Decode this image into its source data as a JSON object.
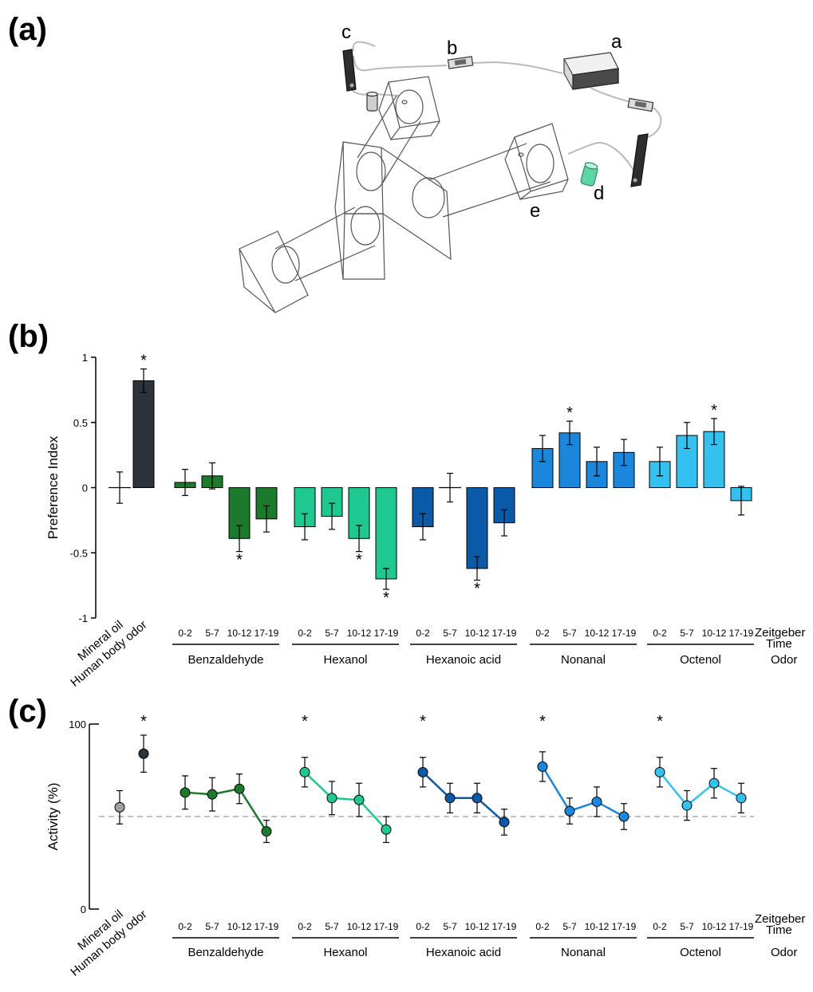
{
  "panels": {
    "a": "(a)",
    "b": "(b)",
    "c": "(c)"
  },
  "diagram": {
    "labels": {
      "a": "a",
      "b": "b",
      "c": "c",
      "d": "d",
      "e": "e"
    }
  },
  "axes_text": {
    "zeitgeber_line1": "Zeitgeber",
    "zeitgeber_line2": "Time",
    "odor": "Odor"
  },
  "colors": {
    "mineral_oil": "#9e9e9e",
    "human": "#2b333b",
    "benzaldehyde": "#1b7a2c",
    "hexanol": "#1fc890",
    "hexanoic_acid": "#0b5aa8",
    "nonanal": "#1a86dc",
    "octenol": "#35c1f0"
  },
  "chart_data": [
    {
      "type": "bar",
      "ylabel": "Preference Index",
      "ylim": [
        -1,
        1
      ],
      "yticks": [
        "1",
        "0.5",
        "0",
        "-0.5",
        "-1"
      ],
      "controls": [
        {
          "name": "Mineral oil",
          "value": 0.0,
          "error": 0.12,
          "marker": "cross",
          "sig": ""
        },
        {
          "name": "Human body odor",
          "value": 0.82,
          "error": 0.09,
          "marker": "bar",
          "sig": "*"
        }
      ],
      "time_categories": [
        "0-2",
        "5-7",
        "10-12",
        "17-19"
      ],
      "groups": [
        {
          "name": "Benzaldehyde",
          "color_key": "benzaldehyde",
          "values": [
            0.04,
            0.09,
            -0.39,
            -0.24
          ],
          "errors": [
            0.1,
            0.1,
            0.1,
            0.1
          ],
          "markers": [
            "bar",
            "bar",
            "bar",
            "bar"
          ],
          "sig": [
            "",
            "",
            "*",
            ""
          ]
        },
        {
          "name": "Hexanol",
          "color_key": "hexanol",
          "values": [
            -0.3,
            -0.22,
            -0.39,
            -0.7
          ],
          "errors": [
            0.1,
            0.1,
            0.1,
            0.08
          ],
          "markers": [
            "bar",
            "bar",
            "bar",
            "bar"
          ],
          "sig": [
            "",
            "",
            "*",
            "*"
          ]
        },
        {
          "name": "Hexanoic acid",
          "color_key": "hexanoic_acid",
          "values": [
            -0.3,
            0.0,
            -0.62,
            -0.27
          ],
          "errors": [
            0.1,
            0.11,
            0.09,
            0.1
          ],
          "markers": [
            "bar",
            "cross",
            "bar",
            "bar"
          ],
          "sig": [
            "",
            "",
            "*",
            ""
          ]
        },
        {
          "name": "Nonanal",
          "color_key": "nonanal",
          "values": [
            0.3,
            0.42,
            0.2,
            0.27
          ],
          "errors": [
            0.1,
            0.09,
            0.11,
            0.1
          ],
          "markers": [
            "bar",
            "bar",
            "bar",
            "bar"
          ],
          "sig": [
            "",
            "*",
            "",
            ""
          ]
        },
        {
          "name": "Octenol",
          "color_key": "octenol",
          "values": [
            0.2,
            0.4,
            0.43,
            -0.1
          ],
          "errors": [
            0.11,
            0.1,
            0.1,
            0.11
          ],
          "markers": [
            "bar",
            "bar",
            "bar",
            "bar"
          ],
          "sig": [
            "",
            "",
            "*",
            ""
          ]
        }
      ]
    },
    {
      "type": "line",
      "ylabel": "Activity (%)",
      "ylim": [
        0,
        100
      ],
      "yticks": [
        "100",
        "0"
      ],
      "reference_line": 50,
      "controls": [
        {
          "name": "Mineral oil",
          "value": 55,
          "error": 9,
          "sig": ""
        },
        {
          "name": "Human body odor",
          "value": 84,
          "error": 10,
          "sig": "*"
        }
      ],
      "time_categories": [
        "0-2",
        "5-7",
        "10-12",
        "17-19"
      ],
      "groups": [
        {
          "name": "Benzaldehyde",
          "color_key": "benzaldehyde",
          "values": [
            63,
            62,
            65,
            42
          ],
          "errors": [
            9,
            9,
            8,
            6
          ],
          "sig": [
            "",
            "",
            "",
            ""
          ]
        },
        {
          "name": "Hexanol",
          "color_key": "hexanol",
          "values": [
            74,
            60,
            59,
            43
          ],
          "errors": [
            8,
            9,
            9,
            7
          ],
          "sig": [
            "*",
            "",
            "",
            ""
          ]
        },
        {
          "name": "Hexanoic acid",
          "color_key": "hexanoic_acid",
          "values": [
            74,
            60,
            60,
            47
          ],
          "errors": [
            8,
            8,
            8,
            7
          ],
          "sig": [
            "*",
            "",
            "",
            ""
          ]
        },
        {
          "name": "Nonanal",
          "color_key": "nonanal",
          "values": [
            77,
            53,
            58,
            50
          ],
          "errors": [
            8,
            7,
            8,
            7
          ],
          "sig": [
            "*",
            "",
            "",
            ""
          ]
        },
        {
          "name": "Octenol",
          "color_key": "octenol",
          "values": [
            74,
            56,
            68,
            60
          ],
          "errors": [
            8,
            8,
            8,
            8
          ],
          "sig": [
            "*",
            "",
            "",
            ""
          ]
        }
      ]
    }
  ]
}
